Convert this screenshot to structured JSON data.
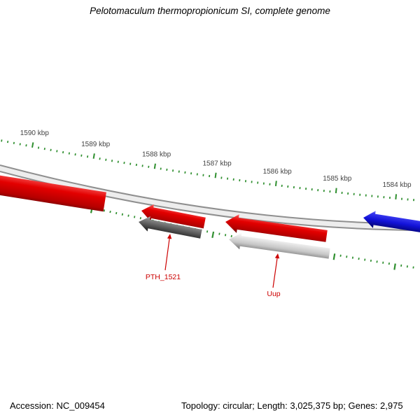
{
  "title": "Pelotomaculum thermopropionicum SI, complete genome",
  "footer": {
    "accession": "Accession: NC_009454",
    "details": "Topology: circular; Length: 3,025,375 bp; Genes: 2,975"
  },
  "chart_data": {
    "type": "genome_map",
    "organism": "Pelotomaculum thermopropionicum SI",
    "accession": "NC_009454",
    "topology": "circular",
    "length_bp": 3025375,
    "genes_total": 2975,
    "visible_region": {
      "from_kbp": 1590,
      "to_kbp": 1584,
      "unit": "kbp"
    },
    "axis": {
      "unit": "kbp",
      "tick_labels": [
        "1590 kbp",
        "1589 kbp",
        "1588 kbp",
        "1587 kbp",
        "1586 kbp",
        "1585 kbp",
        "1584 kbp"
      ],
      "minor_ticks_per_kbp": 10,
      "tick_color": "#2f8f2f",
      "label_color": "#444444"
    },
    "features": [
      {
        "label": "",
        "shape": "arrow",
        "direction": "left",
        "color": "#e00000",
        "approx_start_kbp": 1588.8,
        "approx_end_kbp": 1590.5
      },
      {
        "label": "",
        "shape": "arrow",
        "direction": "left",
        "color": "#e00000",
        "approx_start_kbp": 1587.2,
        "approx_end_kbp": 1588.2
      },
      {
        "label": "PTH_1521",
        "shape": "arrow",
        "direction": "left",
        "color": "#555555",
        "approx_start_kbp": 1587.2,
        "approx_end_kbp": 1588.3
      },
      {
        "label": "",
        "shape": "arrow",
        "direction": "left",
        "color": "#e00000",
        "approx_start_kbp": 1585.2,
        "approx_end_kbp": 1586.8
      },
      {
        "label": "Uup",
        "shape": "arrow",
        "direction": "left",
        "color": "#c8c8c8",
        "approx_start_kbp": 1585.2,
        "approx_end_kbp": 1586.8
      },
      {
        "label": "",
        "shape": "arrow",
        "direction": "left",
        "color": "#1414d2",
        "approx_start_kbp": 1583.7,
        "approx_end_kbp": 1584.6
      }
    ],
    "callout_color": "#cc0000"
  }
}
